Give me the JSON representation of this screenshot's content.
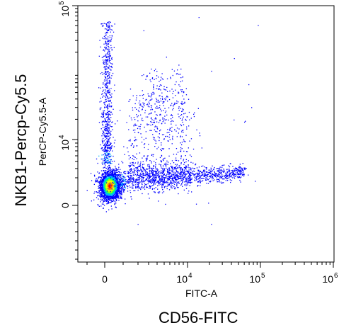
{
  "chart_data": {
    "type": "scatter",
    "subtype": "flow-cytometry-density-dot-plot",
    "title": "",
    "xlabel": "FITC-A",
    "ylabel": "PerCP-Cy5.5-A",
    "x_marker_title": "CD56-FITC",
    "y_marker_title": "NKB1-Percp-Cy5.5",
    "x_scale": "biexponential",
    "y_scale": "biexponential",
    "x_ticks": [
      {
        "label": "0",
        "value": 0,
        "sup": ""
      },
      {
        "label": "10",
        "value": 10000,
        "sup": "4"
      },
      {
        "label": "10",
        "value": 100000,
        "sup": "5"
      },
      {
        "label": "10",
        "value": 1000000,
        "sup": "6"
      }
    ],
    "y_ticks": [
      {
        "label": "0",
        "value": 0,
        "sup": ""
      },
      {
        "label": "10",
        "value": 10000,
        "sup": "4"
      },
      {
        "label": "10",
        "value": 100000,
        "sup": "5"
      }
    ],
    "grid": false,
    "legend": "none",
    "density_colors": [
      "#0000ff",
      "#00b4ff",
      "#00ff7f",
      "#b4ff00",
      "#ffff00",
      "#ff8000",
      "#ff0000"
    ],
    "populations": [
      {
        "description": "main double-negative cluster",
        "center_x": 300,
        "center_y": 0,
        "spread_x": 700,
        "spread_y": 1100,
        "relative_count": 4000,
        "density": "high"
      },
      {
        "description": "CD56+ NKB1- horizontal tail",
        "x_range": [
          1500,
          60000
        ],
        "center_y": 500,
        "relative_count": 1600,
        "density": "low"
      },
      {
        "description": "NKB1+ vertical column",
        "center_x": 500,
        "y_range": [
          6000,
          100000
        ],
        "relative_count": 700,
        "density": "low"
      },
      {
        "description": "CD56+ NKB1+ upper population",
        "x_range": [
          2000,
          30000
        ],
        "y_range": [
          10000,
          60000
        ],
        "relative_count": 500,
        "density": "low"
      }
    ]
  }
}
